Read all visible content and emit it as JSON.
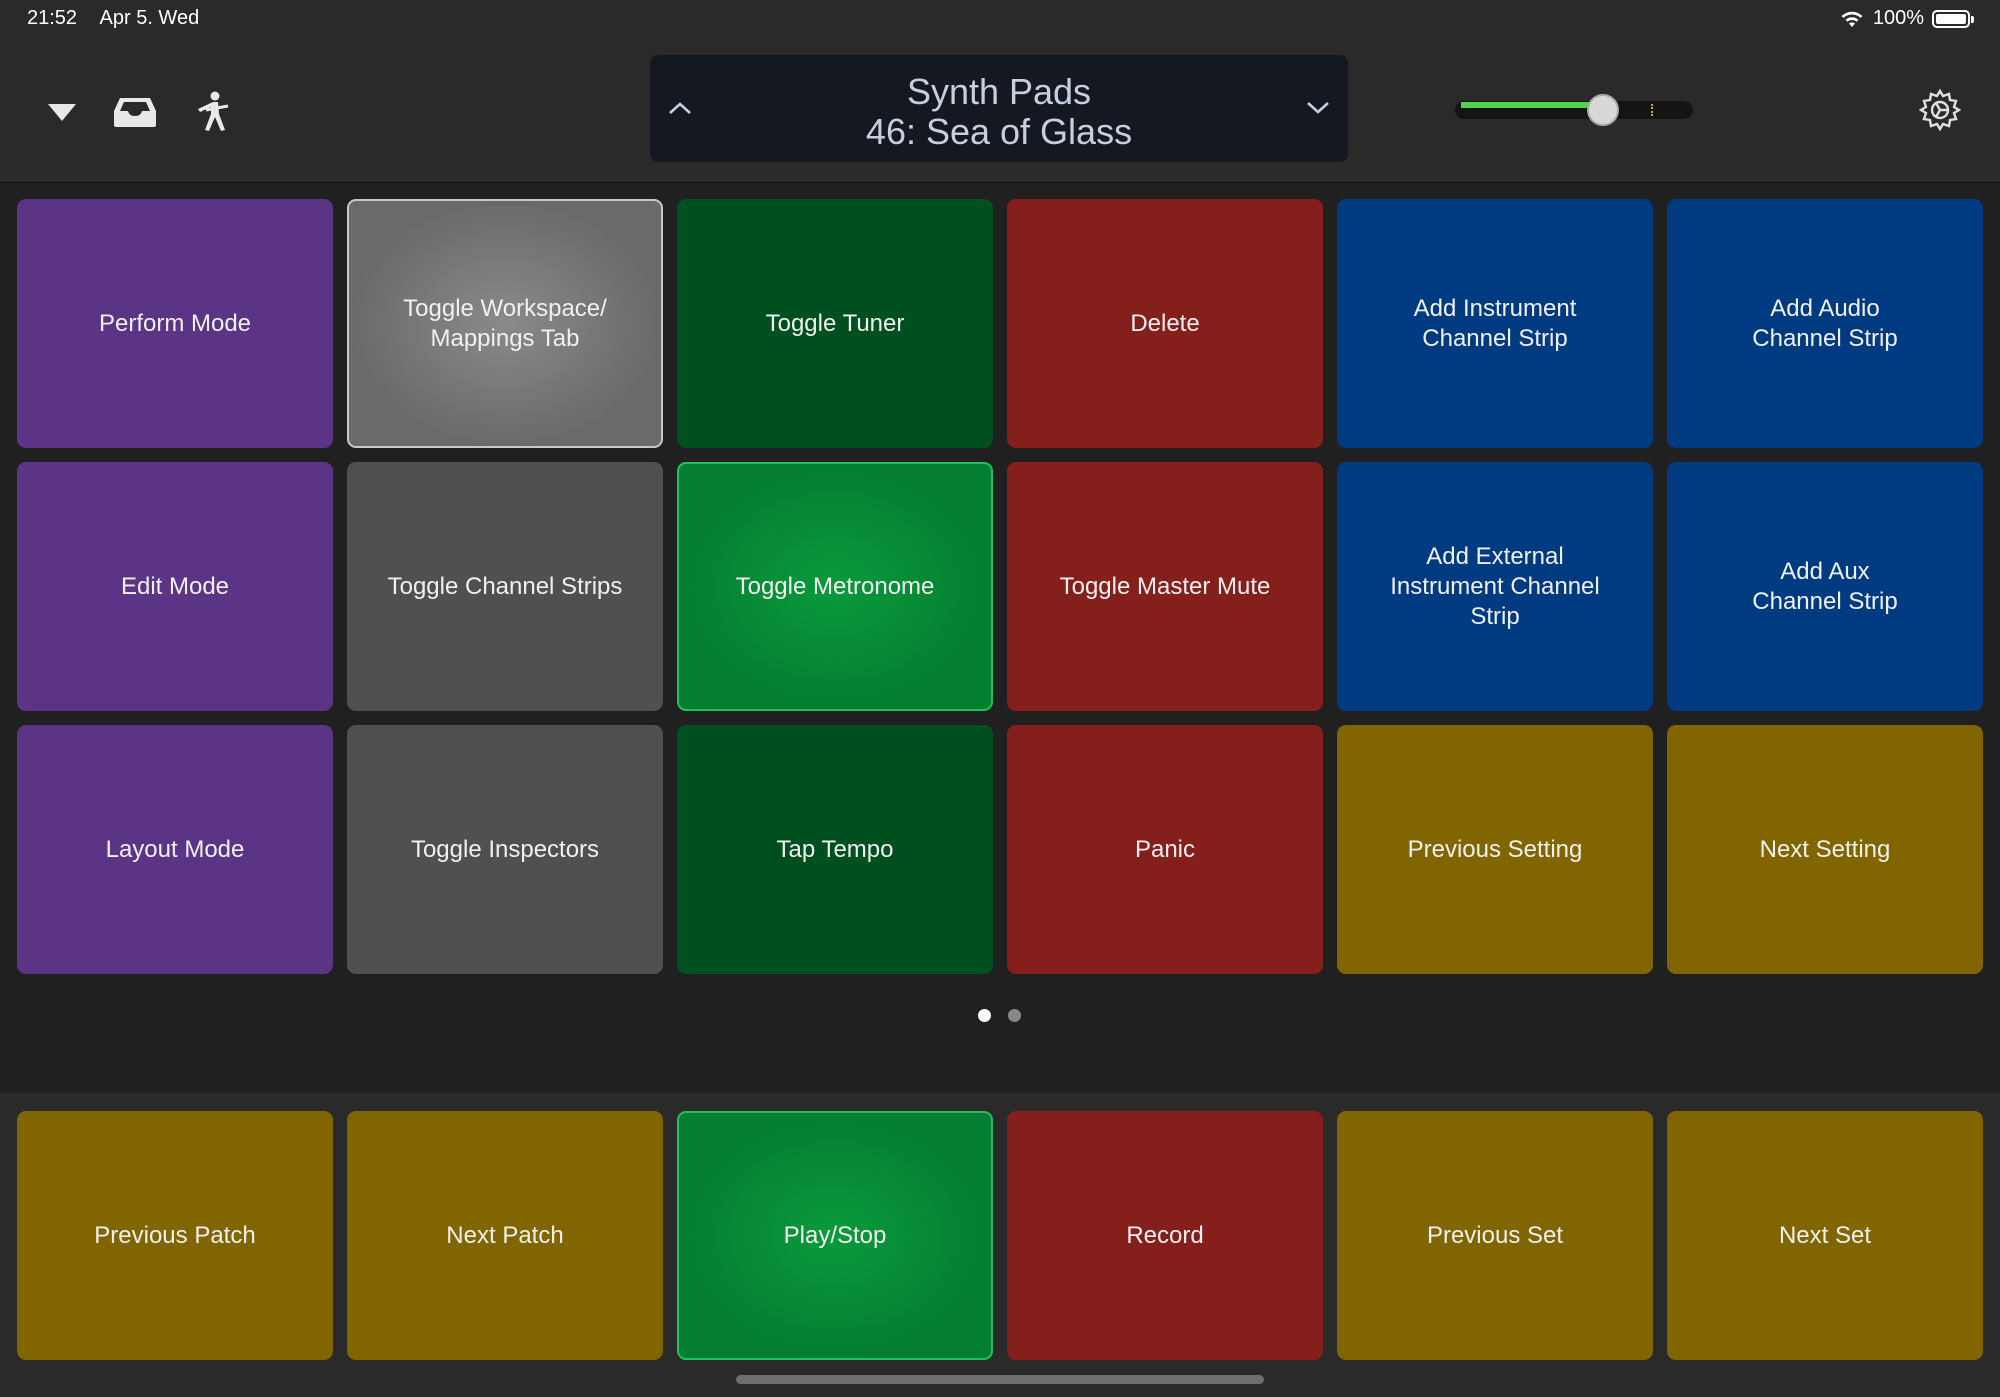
{
  "status": {
    "time": "21:52",
    "date": "Apr 5. Wed",
    "battery": "100%"
  },
  "toolbar": {
    "patch_set": "Synth Pads",
    "patch_name": "46: Sea of Glass",
    "volume_level": 0.61
  },
  "colors": {
    "purple": "#5b3485",
    "gray": "#505050",
    "gray_selected": "#717171",
    "green": "#004f1f",
    "green_active": "#047e31",
    "red": "#841f1c",
    "blue": "#003b82",
    "gold": "#806500"
  },
  "grid": {
    "rows": [
      [
        {
          "label": "Perform Mode",
          "color": "purple"
        },
        {
          "label": "Toggle Workspace/\nMappings Tab",
          "color": "gray_selected"
        },
        {
          "label": "Toggle Tuner",
          "color": "green"
        },
        {
          "label": "Delete",
          "color": "red"
        },
        {
          "label": "Add Instrument\nChannel Strip",
          "color": "blue"
        },
        {
          "label": "Add Audio\nChannel Strip",
          "color": "blue"
        }
      ],
      [
        {
          "label": "Edit Mode",
          "color": "purple"
        },
        {
          "label": "Toggle Channel Strips",
          "color": "gray"
        },
        {
          "label": "Toggle Metronome",
          "color": "green_active"
        },
        {
          "label": "Toggle Master Mute",
          "color": "red"
        },
        {
          "label": "Add External\nInstrument Channel\nStrip",
          "color": "blue"
        },
        {
          "label": "Add Aux\nChannel Strip",
          "color": "blue"
        }
      ],
      [
        {
          "label": "Layout Mode",
          "color": "purple"
        },
        {
          "label": "Toggle Inspectors",
          "color": "gray"
        },
        {
          "label": "Tap Tempo",
          "color": "green"
        },
        {
          "label": "Panic",
          "color": "red"
        },
        {
          "label": "Previous Setting",
          "color": "gold"
        },
        {
          "label": "Next Setting",
          "color": "gold"
        }
      ]
    ]
  },
  "pagination": {
    "pages": 2,
    "current": 1
  },
  "bottom_row": [
    {
      "label": "Previous Patch",
      "color": "gold"
    },
    {
      "label": "Next Patch",
      "color": "gold"
    },
    {
      "label": "Play/Stop",
      "color": "green_active"
    },
    {
      "label": "Record",
      "color": "red"
    },
    {
      "label": "Previous Set",
      "color": "gold"
    },
    {
      "label": "Next Set",
      "color": "gold"
    }
  ],
  "icons": [
    "chevron-down-filled-icon",
    "tray-icon",
    "performer-icon",
    "chevron-up-icon",
    "chevron-down-icon",
    "gear-icon",
    "wifi-icon",
    "battery-icon"
  ]
}
